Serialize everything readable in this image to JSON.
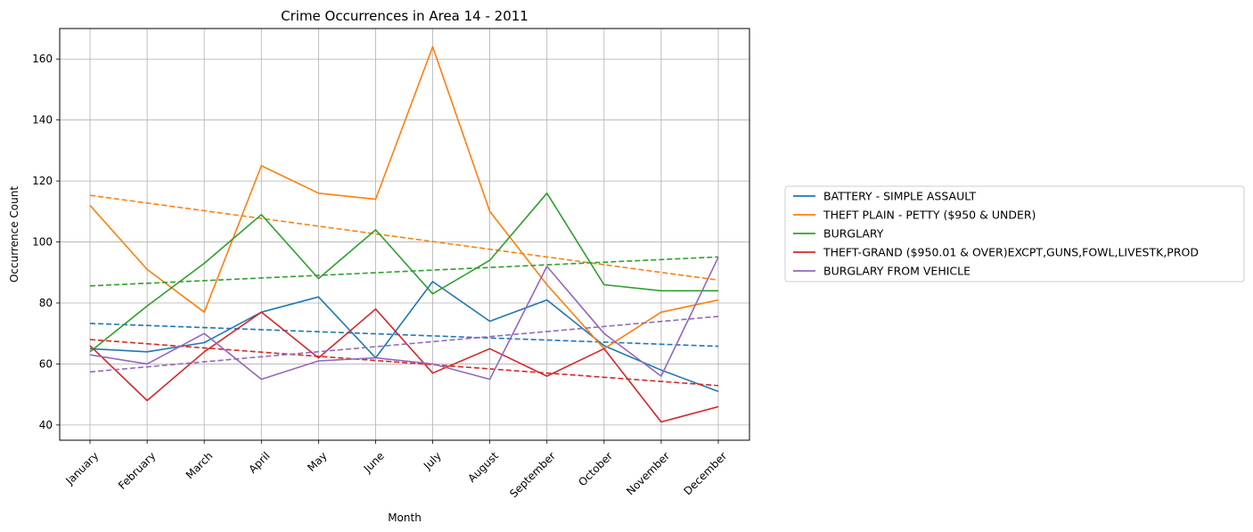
{
  "chart_data": {
    "type": "line",
    "title": "Crime Occurrences in Area 14 - 2011",
    "xlabel": "Month",
    "ylabel": "Occurrence Count",
    "categories": [
      "January",
      "February",
      "March",
      "April",
      "May",
      "June",
      "July",
      "August",
      "September",
      "October",
      "November",
      "December"
    ],
    "ylim": [
      35,
      170
    ],
    "yticks": [
      40,
      60,
      80,
      100,
      120,
      140,
      160
    ],
    "grid": true,
    "legend_position": "right",
    "series": [
      {
        "name": "BATTERY - SIMPLE ASSAULT",
        "color": "#1f77b4",
        "values": [
          65,
          64,
          67,
          77,
          82,
          62,
          87,
          74,
          81,
          66,
          58,
          51
        ],
        "trend": [
          73.3,
          65.8
        ]
      },
      {
        "name": "THEFT PLAIN - PETTY ($950 & UNDER)",
        "color": "#ff7f0e",
        "values": [
          112,
          91,
          77,
          125,
          116,
          114,
          164,
          110,
          86,
          65,
          77,
          81
        ],
        "trend": [
          115.3,
          87.5
        ]
      },
      {
        "name": "BURGLARY",
        "color": "#2ca02c",
        "values": [
          64,
          79,
          93,
          109,
          88,
          104,
          83,
          94,
          116,
          86,
          84,
          84
        ],
        "trend": [
          85.6,
          95.1
        ]
      },
      {
        "name": "THEFT-GRAND ($950.01 & OVER)EXCPT,GUNS,FOWL,LIVESTK,PROD",
        "color": "#d62728",
        "values": [
          66,
          48,
          64,
          77,
          62,
          78,
          57,
          65,
          56,
          65,
          41,
          46
        ],
        "trend": [
          68.0,
          52.9
        ]
      },
      {
        "name": "BURGLARY FROM VEHICLE",
        "color": "#9467bd",
        "values": [
          63,
          60,
          70,
          55,
          61,
          62,
          60,
          55,
          92,
          70,
          56,
          95
        ],
        "trend": [
          57.4,
          75.6
        ]
      }
    ]
  }
}
